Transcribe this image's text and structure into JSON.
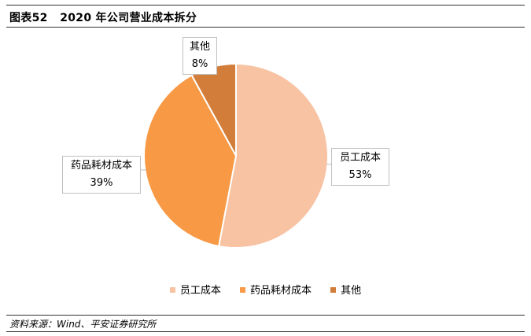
{
  "header": {
    "figure_label": "图表52",
    "title": "2020 年公司营业成本拆分"
  },
  "chart_data": {
    "type": "pie",
    "title": "2020 年公司营业成本拆分",
    "slices": [
      {
        "name": "员工成本",
        "value": 53,
        "label": "53%",
        "color": "#F8C3A3"
      },
      {
        "name": "药品耗材成本",
        "value": 39,
        "label": "39%",
        "color": "#F79945"
      },
      {
        "name": "其他",
        "value": 8,
        "label": "8%",
        "color": "#D27D3A"
      }
    ],
    "start_angle_deg": 0,
    "direction": "clockwise",
    "legend_position": "bottom",
    "data_labels": "callout boxes with category name and percentage"
  },
  "legend": {
    "items": [
      {
        "label": "员工成本",
        "color": "#F8C3A3"
      },
      {
        "label": "药品耗材成本",
        "color": "#F79945"
      },
      {
        "label": "其他",
        "color": "#D27D3A"
      }
    ]
  },
  "footer": {
    "source": "资料来源：Wind、平安证券研究所"
  }
}
